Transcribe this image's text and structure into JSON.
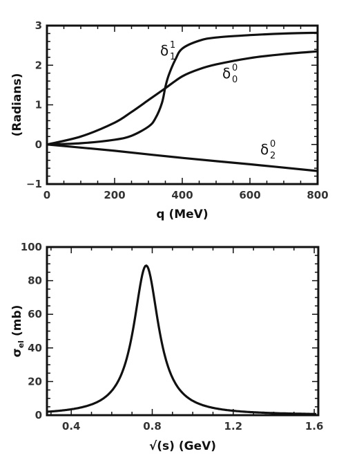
{
  "chart_data": [
    {
      "type": "line",
      "title": "",
      "xlabel": "q (MeV)",
      "ylabel": "(Radians)",
      "xlim": [
        0,
        800
      ],
      "ylim": [
        -1,
        3
      ],
      "xticks": [
        "0",
        "200",
        "400",
        "600",
        "800"
      ],
      "yticks": [
        "-1",
        "0",
        "1",
        "2",
        "3"
      ],
      "grid": false,
      "legend": "none",
      "series": [
        {
          "label_symbol": "δ",
          "label_sub": "1",
          "label_sup": "1",
          "x": [
            0,
            100,
            200,
            250,
            300,
            320,
            340,
            350,
            360,
            380,
            400,
            450,
            500,
            600,
            700,
            800
          ],
          "y": [
            0,
            0.03,
            0.12,
            0.22,
            0.45,
            0.65,
            1.05,
            1.45,
            1.75,
            2.15,
            2.42,
            2.62,
            2.7,
            2.76,
            2.8,
            2.82
          ]
        },
        {
          "label_symbol": "δ",
          "label_sub": "0",
          "label_sup": "0",
          "x": [
            0,
            100,
            200,
            250,
            300,
            350,
            400,
            450,
            500,
            600,
            700,
            800
          ],
          "y": [
            0,
            0.2,
            0.55,
            0.82,
            1.12,
            1.42,
            1.72,
            1.9,
            2.02,
            2.18,
            2.28,
            2.35
          ]
        },
        {
          "label_symbol": "δ",
          "label_sub": "2",
          "label_sup": "0",
          "x": [
            0,
            200,
            400,
            600,
            800
          ],
          "y": [
            0,
            -0.16,
            -0.34,
            -0.5,
            -0.67
          ]
        }
      ]
    },
    {
      "type": "line",
      "title": "",
      "xlabel": "√(s) (GeV)",
      "ylabel_main": "σ",
      "ylabel_sub": "el",
      "ylabel_rest": " (mb)",
      "xlim": [
        0.28,
        1.62
      ],
      "ylim": [
        0,
        100
      ],
      "xticks": [
        "0.4",
        "0.8",
        "1.2",
        "1.6"
      ],
      "yticks": [
        "0",
        "20",
        "40",
        "60",
        "80",
        "100"
      ],
      "grid": false,
      "legend": "none",
      "series": [
        {
          "peak_x": 0.77,
          "peak_y": 89,
          "width": 0.15,
          "x_start": 0.28,
          "x_end": 1.61
        }
      ]
    }
  ]
}
